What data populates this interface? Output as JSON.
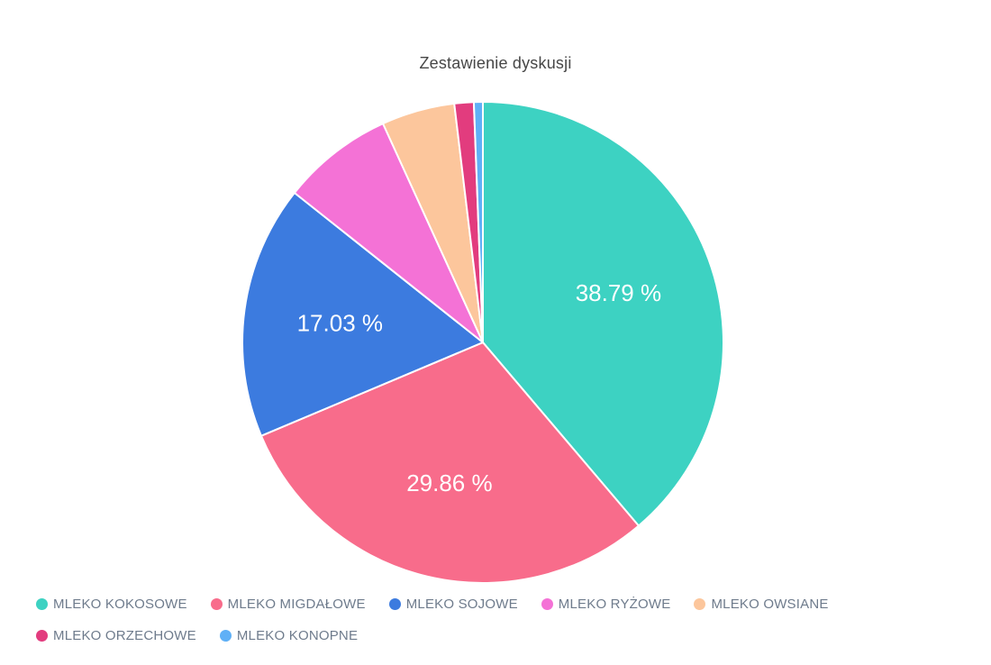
{
  "title": "Zestawienie dyskusji",
  "chart_data": {
    "type": "pie",
    "title": "Zestawienie dyskusji",
    "unit": "percent",
    "start_angle_deg": 0,
    "direction": "clockwise",
    "legend_position": "bottom",
    "label_color": "#FFFFFF",
    "legend_text_color": "#6E7B8C",
    "title_color": "#474747",
    "slices": [
      {
        "name": "MLEKO KOKOSOWE",
        "value": 38.79,
        "display_label": "38.79 %",
        "color": "#3DD2C2"
      },
      {
        "name": "MLEKO MIGDAŁOWE",
        "value": 29.86,
        "display_label": "29.86 %",
        "color": "#F86C8B"
      },
      {
        "name": "MLEKO SOJOWE",
        "value": 17.03,
        "display_label": "17.03 %",
        "color": "#3C7BDF"
      },
      {
        "name": "MLEKO RYŻOWE",
        "value": 7.5,
        "display_label": "",
        "color": "#F472D6"
      },
      {
        "name": "MLEKO OWSIANE",
        "value": 4.92,
        "display_label": "",
        "color": "#FCC69C"
      },
      {
        "name": "MLEKO ORZECHOWE",
        "value": 1.3,
        "display_label": "",
        "color": "#E23C7E"
      },
      {
        "name": "MLEKO KONOPNE",
        "value": 0.6,
        "display_label": "",
        "color": "#5FB0F6"
      }
    ]
  }
}
